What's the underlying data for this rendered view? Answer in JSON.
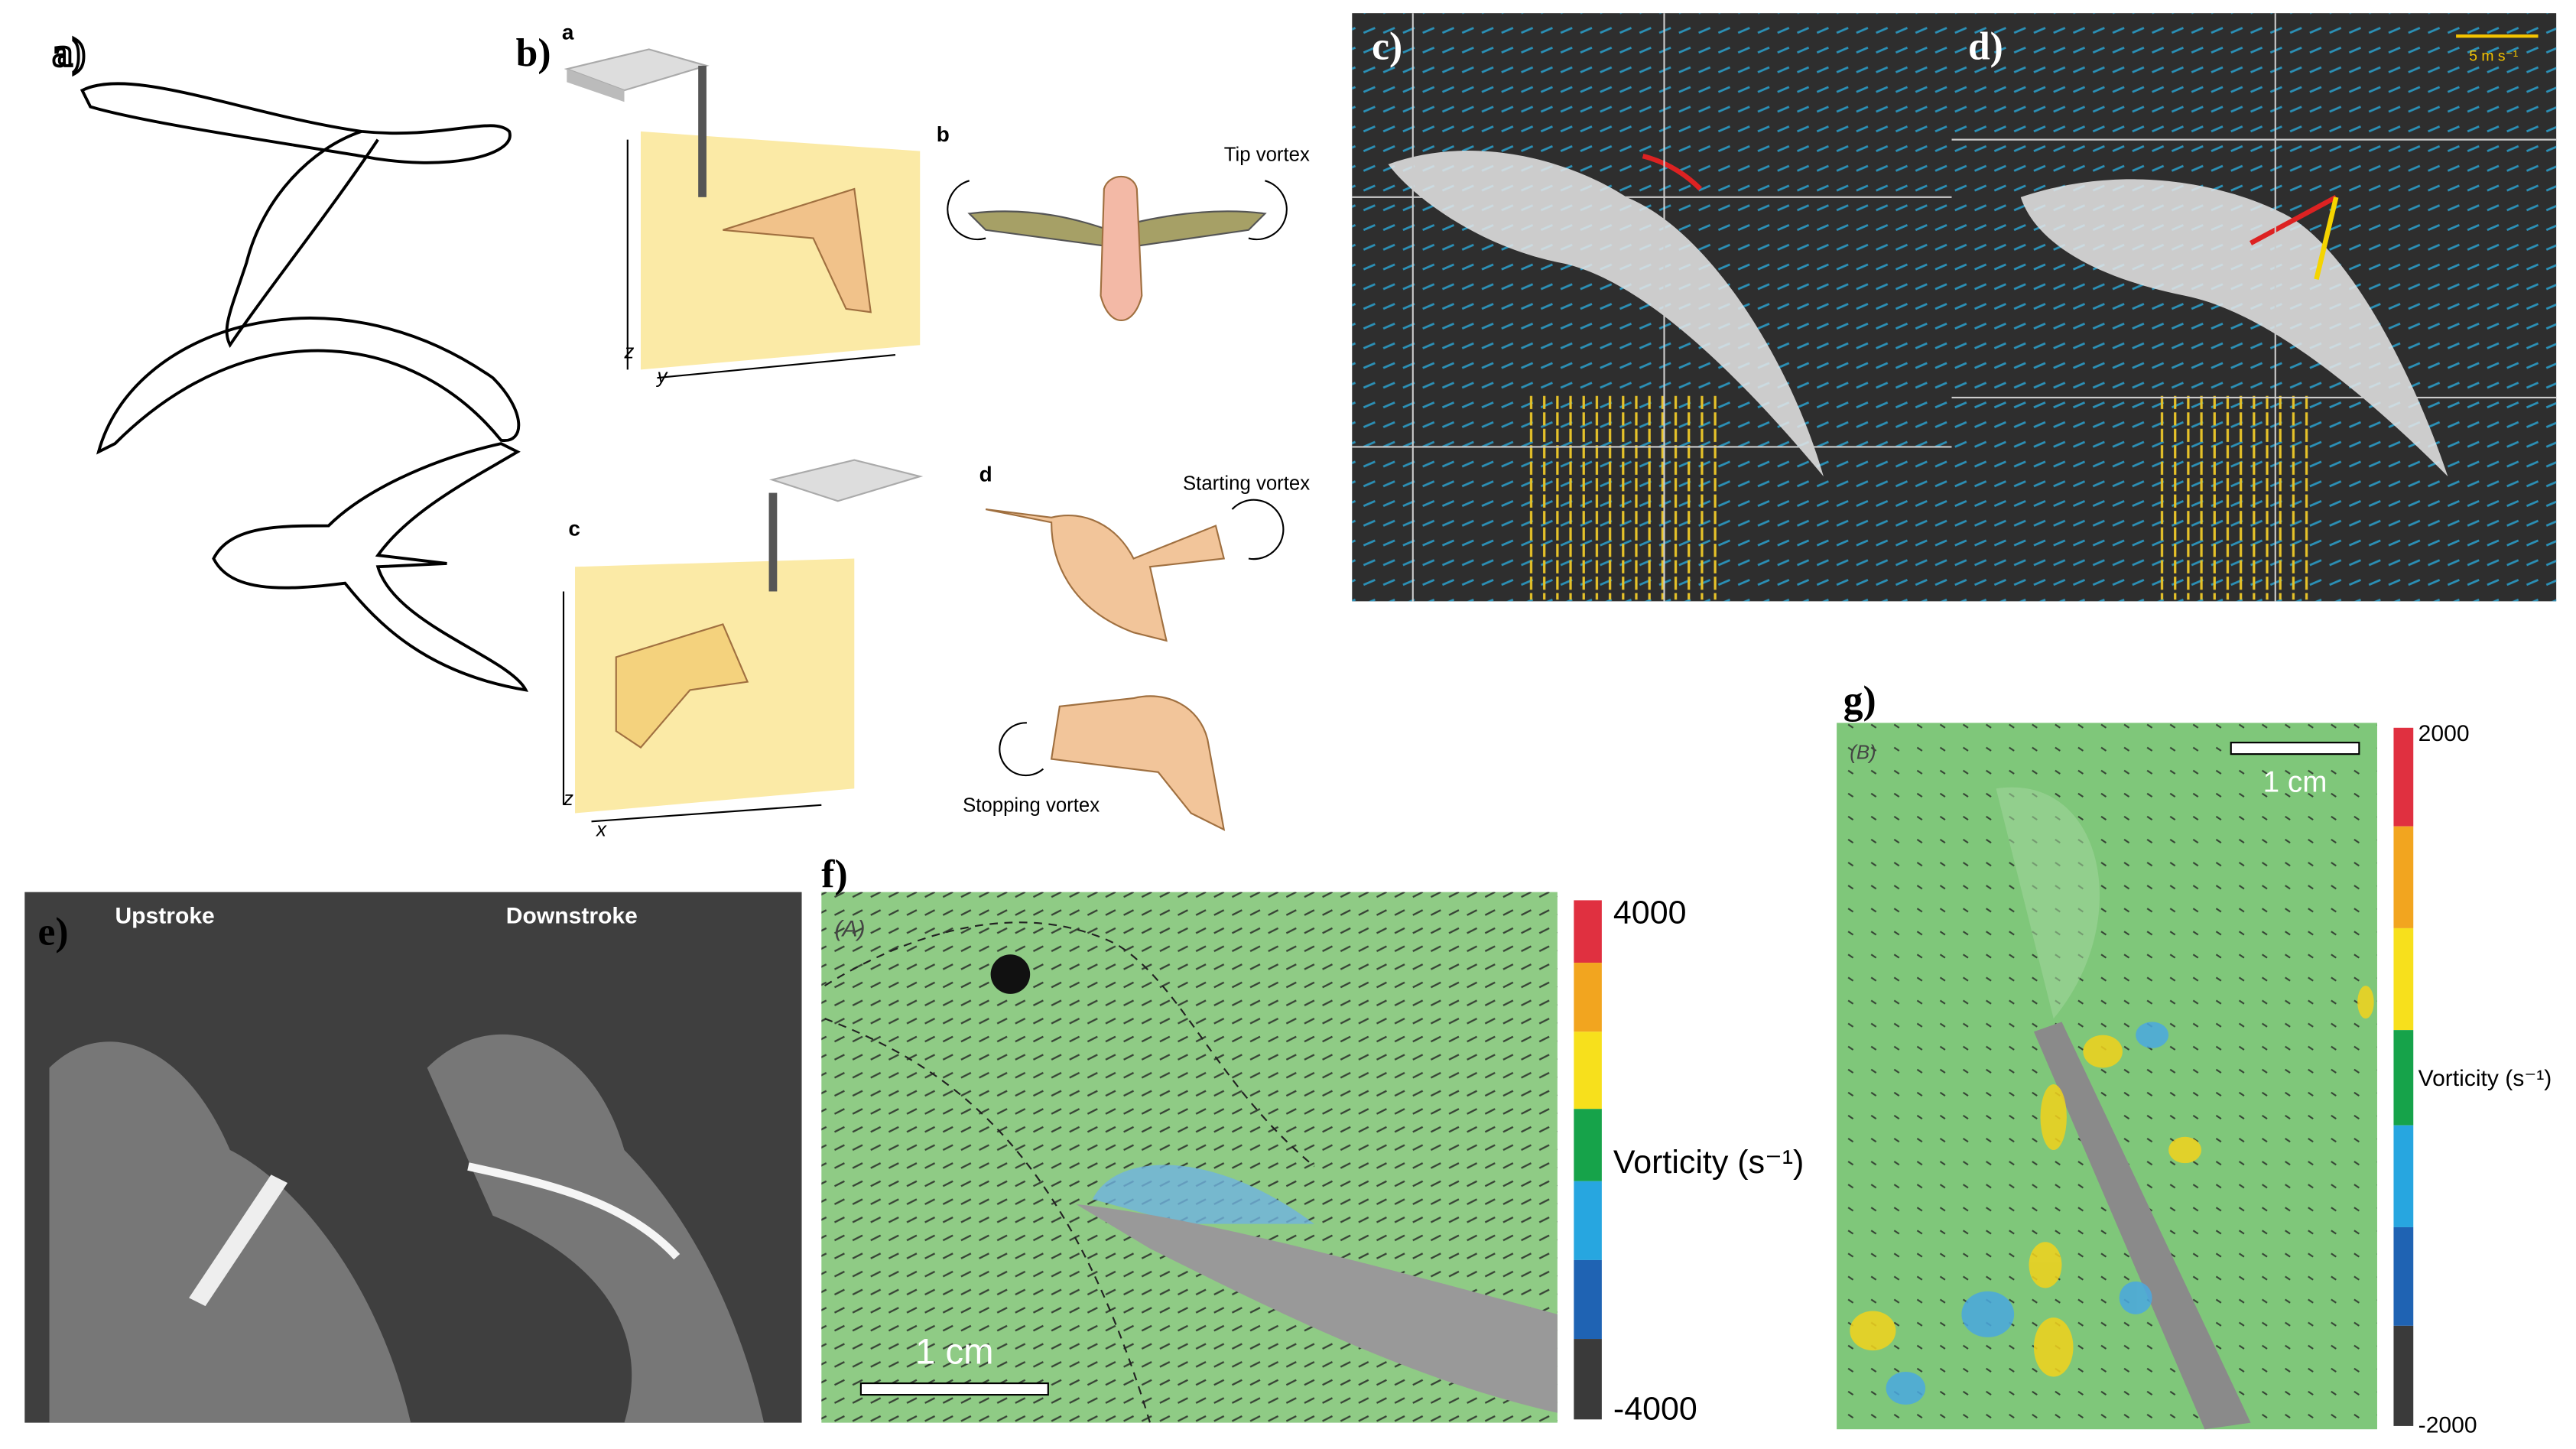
{
  "panels": {
    "a": {
      "label": "a)"
    },
    "b": {
      "label": "b)",
      "sub_labels": [
        "a",
        "b",
        "c",
        "d"
      ],
      "tip_vortex": "Tip vortex",
      "starting_vortex": "Starting vortex",
      "stopping_vortex": "Stopping vortex",
      "axes_top": [
        "z",
        "y"
      ],
      "axes_bottom": [
        "z",
        "x"
      ]
    },
    "c": {
      "label": "c)"
    },
    "d": {
      "label": "d)",
      "scale": "5 m s⁻¹"
    },
    "e": {
      "label": "e)",
      "left_title": "Upstroke",
      "right_title": "Downstroke"
    },
    "f": {
      "label": "f)",
      "tag": "(A)",
      "scale_bar": "1 cm",
      "colorbar_max": "4000",
      "colorbar_min": "-4000",
      "colorbar_title": "Vorticity (s⁻¹)"
    },
    "g": {
      "label": "g)",
      "tag": "(B)",
      "scale_bar": "1 cm",
      "colorbar_max": "2000",
      "colorbar_min": "-2000",
      "colorbar_title": "Vorticity (s⁻¹)"
    }
  }
}
